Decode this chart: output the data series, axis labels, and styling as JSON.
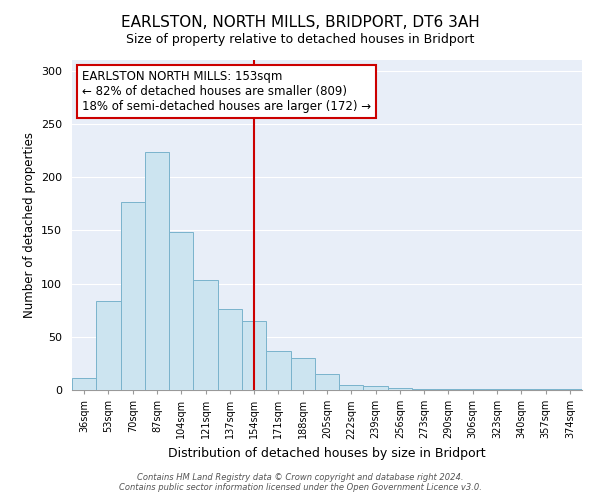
{
  "title": "EARLSTON, NORTH MILLS, BRIDPORT, DT6 3AH",
  "subtitle": "Size of property relative to detached houses in Bridport",
  "xlabel": "Distribution of detached houses by size in Bridport",
  "ylabel": "Number of detached properties",
  "categories": [
    "36sqm",
    "53sqm",
    "70sqm",
    "87sqm",
    "104sqm",
    "121sqm",
    "137sqm",
    "154sqm",
    "171sqm",
    "188sqm",
    "205sqm",
    "222sqm",
    "239sqm",
    "256sqm",
    "273sqm",
    "290sqm",
    "306sqm",
    "323sqm",
    "340sqm",
    "357sqm",
    "374sqm"
  ],
  "values": [
    11,
    84,
    177,
    224,
    148,
    103,
    76,
    65,
    37,
    30,
    15,
    5,
    4,
    2,
    1,
    1,
    1,
    1,
    1,
    1,
    1
  ],
  "bar_color": "#cce4f0",
  "bar_edge_color": "#7ab3cc",
  "vline_x_index": 7,
  "vline_color": "#cc0000",
  "annotation_title": "EARLSTON NORTH MILLS: 153sqm",
  "annotation_line1": "← 82% of detached houses are smaller (809)",
  "annotation_line2": "18% of semi-detached houses are larger (172) →",
  "annotation_box_facecolor": "#ffffff",
  "annotation_box_edgecolor": "#cc0000",
  "ylim": [
    0,
    310
  ],
  "yticks": [
    0,
    50,
    100,
    150,
    200,
    250,
    300
  ],
  "footer1": "Contains HM Land Registry data © Crown copyright and database right 2024.",
  "footer2": "Contains public sector information licensed under the Open Government Licence v3.0.",
  "fig_facecolor": "#ffffff",
  "plot_facecolor": "#e8eef8",
  "grid_color": "#ffffff",
  "title_fontsize": 11,
  "subtitle_fontsize": 9
}
